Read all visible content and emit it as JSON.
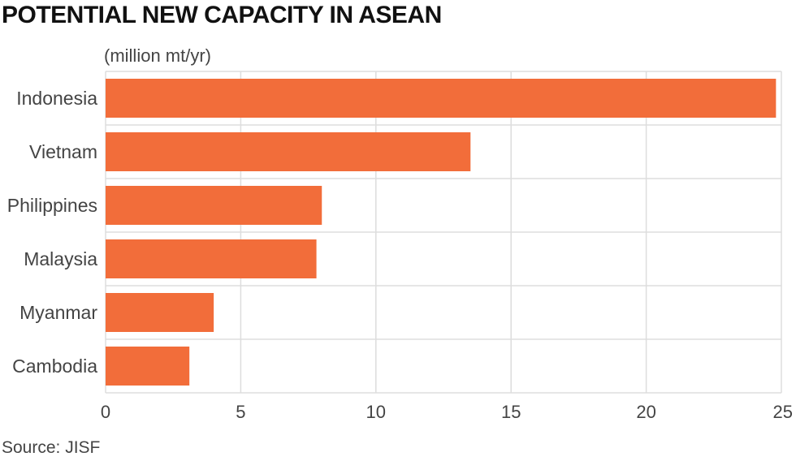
{
  "chart_data": {
    "type": "bar",
    "orientation": "horizontal",
    "title": "POTENTIAL NEW CAPACITY IN ASEAN",
    "unit_label": "(million mt/yr)",
    "source": "Source: JISF",
    "categories": [
      "Indonesia",
      "Vietnam",
      "Philippines",
      "Malaysia",
      "Myanmar",
      "Cambodia"
    ],
    "values": [
      24.8,
      13.5,
      8.0,
      7.8,
      4.0,
      3.1
    ],
    "xlim": [
      0,
      25
    ],
    "xticks": [
      0,
      5,
      10,
      15,
      20,
      25
    ],
    "grid": true,
    "bar_color": "#f26d3a",
    "grid_color": "#dddddd"
  }
}
